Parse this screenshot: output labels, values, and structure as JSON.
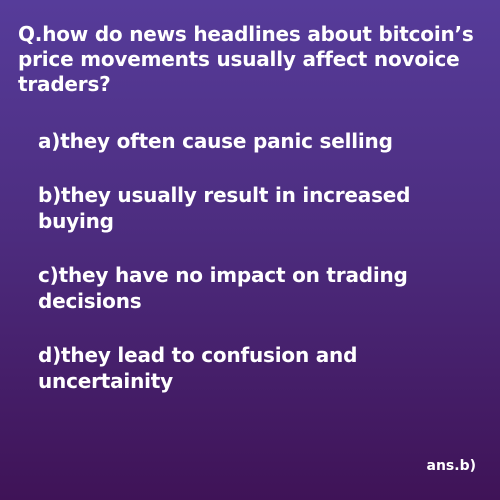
{
  "card": {
    "question": "Q.how do news headlines about bitcoin’s price movements usually affect novoice traders?",
    "options": [
      "a)they often cause panic selling",
      "b)they usually result in increased buying",
      "c)they have no impact on trading decisions",
      "d)they lead to confusion and uncertainity"
    ],
    "answer": "ans.b)"
  },
  "colors": {
    "background_top": "#563c9a",
    "background_bottom": "#3f1357",
    "text": "#ffffff"
  }
}
